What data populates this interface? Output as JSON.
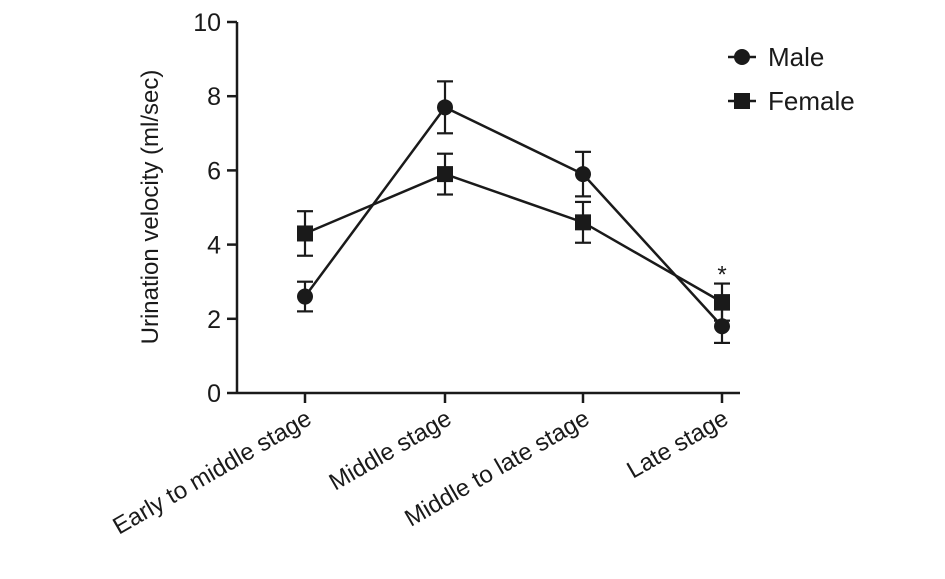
{
  "chart_data": {
    "type": "line",
    "categories": [
      "Early to middle stage",
      "Middle stage",
      "Middle to late stage",
      "Late stage"
    ],
    "series": [
      {
        "name": "Male",
        "marker": "circle",
        "values": [
          2.6,
          7.7,
          5.9,
          1.8
        ],
        "errors": [
          0.4,
          0.7,
          0.6,
          0.45
        ]
      },
      {
        "name": "Female",
        "marker": "square",
        "values": [
          4.3,
          5.9,
          4.6,
          2.45
        ],
        "errors": [
          0.6,
          0.55,
          0.55,
          0.5
        ]
      }
    ],
    "title": "",
    "xlabel": "",
    "ylabel": "Urination velocity (ml/sec)",
    "ylim": [
      0,
      10
    ],
    "yticks": [
      0,
      2,
      4,
      6,
      8,
      10
    ],
    "ytick_labels": [
      "0",
      "2",
      "4",
      "6",
      "8",
      "10"
    ],
    "legend_position": "top-right",
    "grid": false,
    "annotations": [
      {
        "text": "*",
        "category": "Late stage",
        "value": 3.2
      }
    ],
    "line_color": "#1a1a1a"
  }
}
